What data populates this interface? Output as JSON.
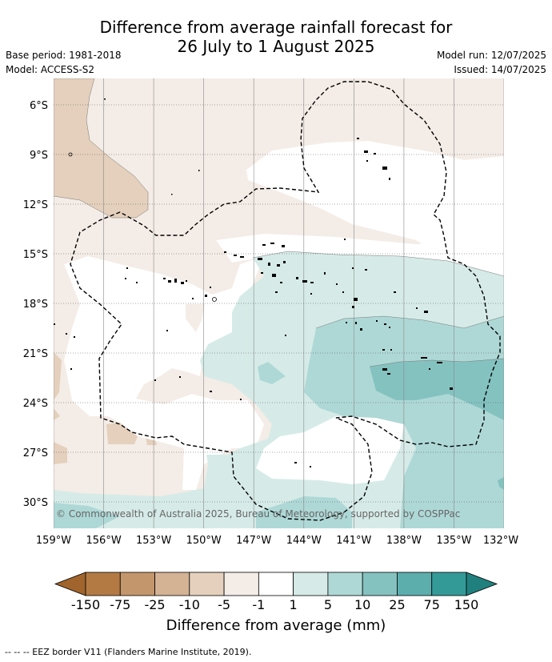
{
  "title_line1": "Difference from average rainfall forecast for",
  "title_line2": "26 July to 1 August 2025",
  "base_period": "Base period: 1981-2018",
  "model": "Model: ACCESS-S2",
  "model_run": "Model run: 12/07/2025",
  "issued": "Issued: 14/07/2025",
  "copyright": "© Commonwealth of Australia 2025, Bureau of Meteorology, supported by COSPPac",
  "lat_labels": [
    "6°S",
    "9°S",
    "12°S",
    "15°S",
    "18°S",
    "21°S",
    "24°S",
    "27°S",
    "30°S"
  ],
  "lon_labels": [
    "159°W",
    "156°W",
    "153°W",
    "150°W",
    "147°W",
    "144°W",
    "141°W",
    "138°W",
    "135°W",
    "132°W"
  ],
  "colorbar": {
    "label": "Difference from average (mm)",
    "ticks": [
      "-150",
      "-75",
      "-25",
      "-10",
      "-5",
      "-1",
      "1",
      "5",
      "10",
      "25",
      "75",
      "150"
    ],
    "colors": [
      "#a0642c",
      "#b47a44",
      "#c4966c",
      "#d4b294",
      "#e4d0bc",
      "#f4ece6",
      "#ffffff",
      "#d6ebe8",
      "#aed8d6",
      "#84c2c0",
      "#5caead",
      "#349a98",
      "#20807e"
    ]
  },
  "footer": "-- -- -- EEZ border V11 (Flanders Marine Institute, 2019)."
}
